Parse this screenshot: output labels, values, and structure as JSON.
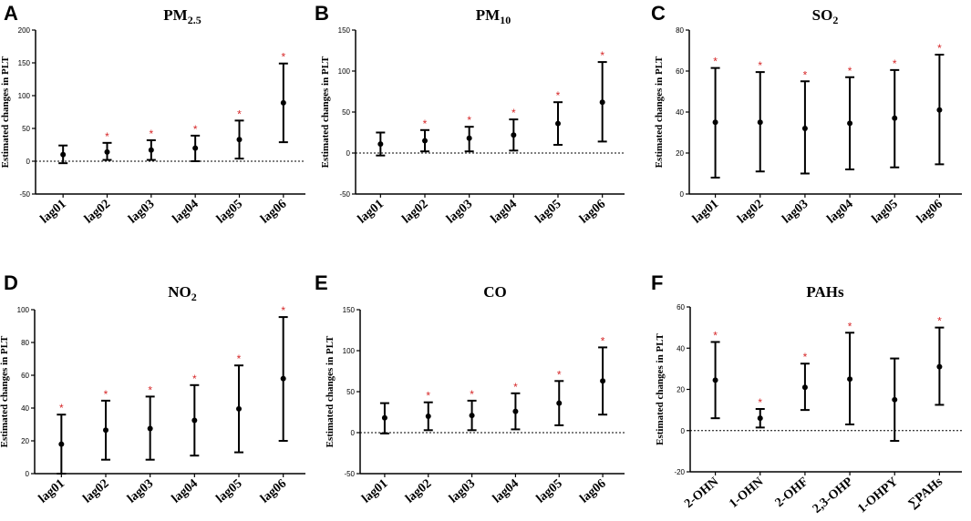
{
  "figure": {
    "y_axis_label": "Estimated changes in PLT"
  },
  "chart_data": [
    {
      "type": "errorbar",
      "letter": "A",
      "title": "PM",
      "title_sub": "2.5",
      "ylabel": "Estimated changes in PLT",
      "ylim": [
        -50,
        200
      ],
      "yticks": [
        -50,
        0,
        50,
        100,
        150,
        200
      ],
      "categories": [
        "lag01",
        "lag02",
        "lag03",
        "lag04",
        "lag05",
        "lag06"
      ],
      "estimate": [
        10,
        14,
        17,
        20,
        33,
        89
      ],
      "lower": [
        -3,
        2,
        2,
        0,
        4,
        29
      ],
      "upper": [
        24,
        28,
        32,
        39,
        62,
        149
      ],
      "significant": [
        false,
        true,
        true,
        true,
        true,
        true
      ],
      "reference_line": 0
    },
    {
      "type": "errorbar",
      "letter": "B",
      "title": "PM",
      "title_sub": "10",
      "ylabel": "Estimated changes in PLT",
      "ylim": [
        -50,
        150
      ],
      "yticks": [
        -50,
        0,
        50,
        100,
        150
      ],
      "categories": [
        "lag01",
        "lag02",
        "lag03",
        "lag04",
        "lag05",
        "lag06"
      ],
      "estimate": [
        11,
        15,
        18,
        22,
        36,
        62
      ],
      "lower": [
        -3,
        2,
        2,
        3,
        10,
        14
      ],
      "upper": [
        25,
        28,
        32,
        41,
        62,
        111
      ],
      "significant": [
        false,
        true,
        true,
        true,
        true,
        true
      ],
      "reference_line": 0
    },
    {
      "type": "errorbar",
      "letter": "C",
      "title": "SO",
      "title_sub": "2",
      "ylabel": "Estimated changes in PLT",
      "ylim": [
        0,
        80
      ],
      "yticks": [
        0,
        20,
        40,
        60,
        80
      ],
      "categories": [
        "lag01",
        "lag02",
        "lag03",
        "lag04",
        "lag05",
        "lag06"
      ],
      "estimate": [
        35,
        35,
        32,
        34.5,
        37,
        41
      ],
      "lower": [
        8,
        11,
        10,
        12,
        13,
        14.5
      ],
      "upper": [
        61.5,
        59.5,
        55,
        57,
        60.5,
        68
      ],
      "significant": [
        true,
        true,
        true,
        true,
        true,
        true
      ],
      "reference_line": null
    },
    {
      "type": "errorbar",
      "letter": "D",
      "title": "NO",
      "title_sub": "2",
      "ylabel": "Estimated changes in PLT",
      "ylim": [
        0,
        100
      ],
      "yticks": [
        0,
        20,
        40,
        60,
        80,
        100
      ],
      "categories": [
        "lag01",
        "lag02",
        "lag03",
        "lag04",
        "lag05",
        "lag06"
      ],
      "estimate": [
        18,
        26.5,
        27.5,
        32.5,
        39.5,
        58
      ],
      "lower": [
        0,
        8.5,
        8.5,
        11,
        13,
        20
      ],
      "upper": [
        36,
        44.5,
        47,
        54,
        66,
        95.5
      ],
      "significant": [
        true,
        true,
        true,
        true,
        true,
        true
      ],
      "reference_line": null
    },
    {
      "type": "errorbar",
      "letter": "E",
      "title": "CO",
      "title_sub": "",
      "ylabel": "Estimated changes in PLT",
      "ylim": [
        -50,
        150
      ],
      "yticks": [
        -50,
        0,
        50,
        100,
        150
      ],
      "categories": [
        "lag01",
        "lag02",
        "lag03",
        "lag04",
        "lag05",
        "lag06"
      ],
      "estimate": [
        18,
        20,
        21,
        26,
        36,
        63
      ],
      "lower": [
        -1,
        3,
        3,
        4,
        9,
        22
      ],
      "upper": [
        36,
        37,
        39,
        48,
        63,
        104
      ],
      "significant": [
        false,
        true,
        true,
        true,
        true,
        true
      ],
      "reference_line": 0
    },
    {
      "type": "errorbar",
      "letter": "F",
      "title": "PAHs",
      "title_sub": "",
      "ylabel": "Estimated changes in PLT",
      "ylim": [
        -20,
        60
      ],
      "yticks": [
        -20,
        0,
        20,
        40,
        60
      ],
      "categories": [
        "2-OHN",
        "1-OHN",
        "2-OHF",
        "2,3-OHP",
        "1-OHPY",
        "∑PAHs"
      ],
      "estimate": [
        24.5,
        6,
        21,
        25,
        15,
        31
      ],
      "lower": [
        6,
        1.5,
        10,
        3,
        -5,
        12.5
      ],
      "upper": [
        43,
        10.5,
        32.5,
        47.5,
        35,
        50
      ],
      "significant": [
        true,
        true,
        true,
        true,
        false,
        true
      ],
      "reference_line": 0
    }
  ]
}
